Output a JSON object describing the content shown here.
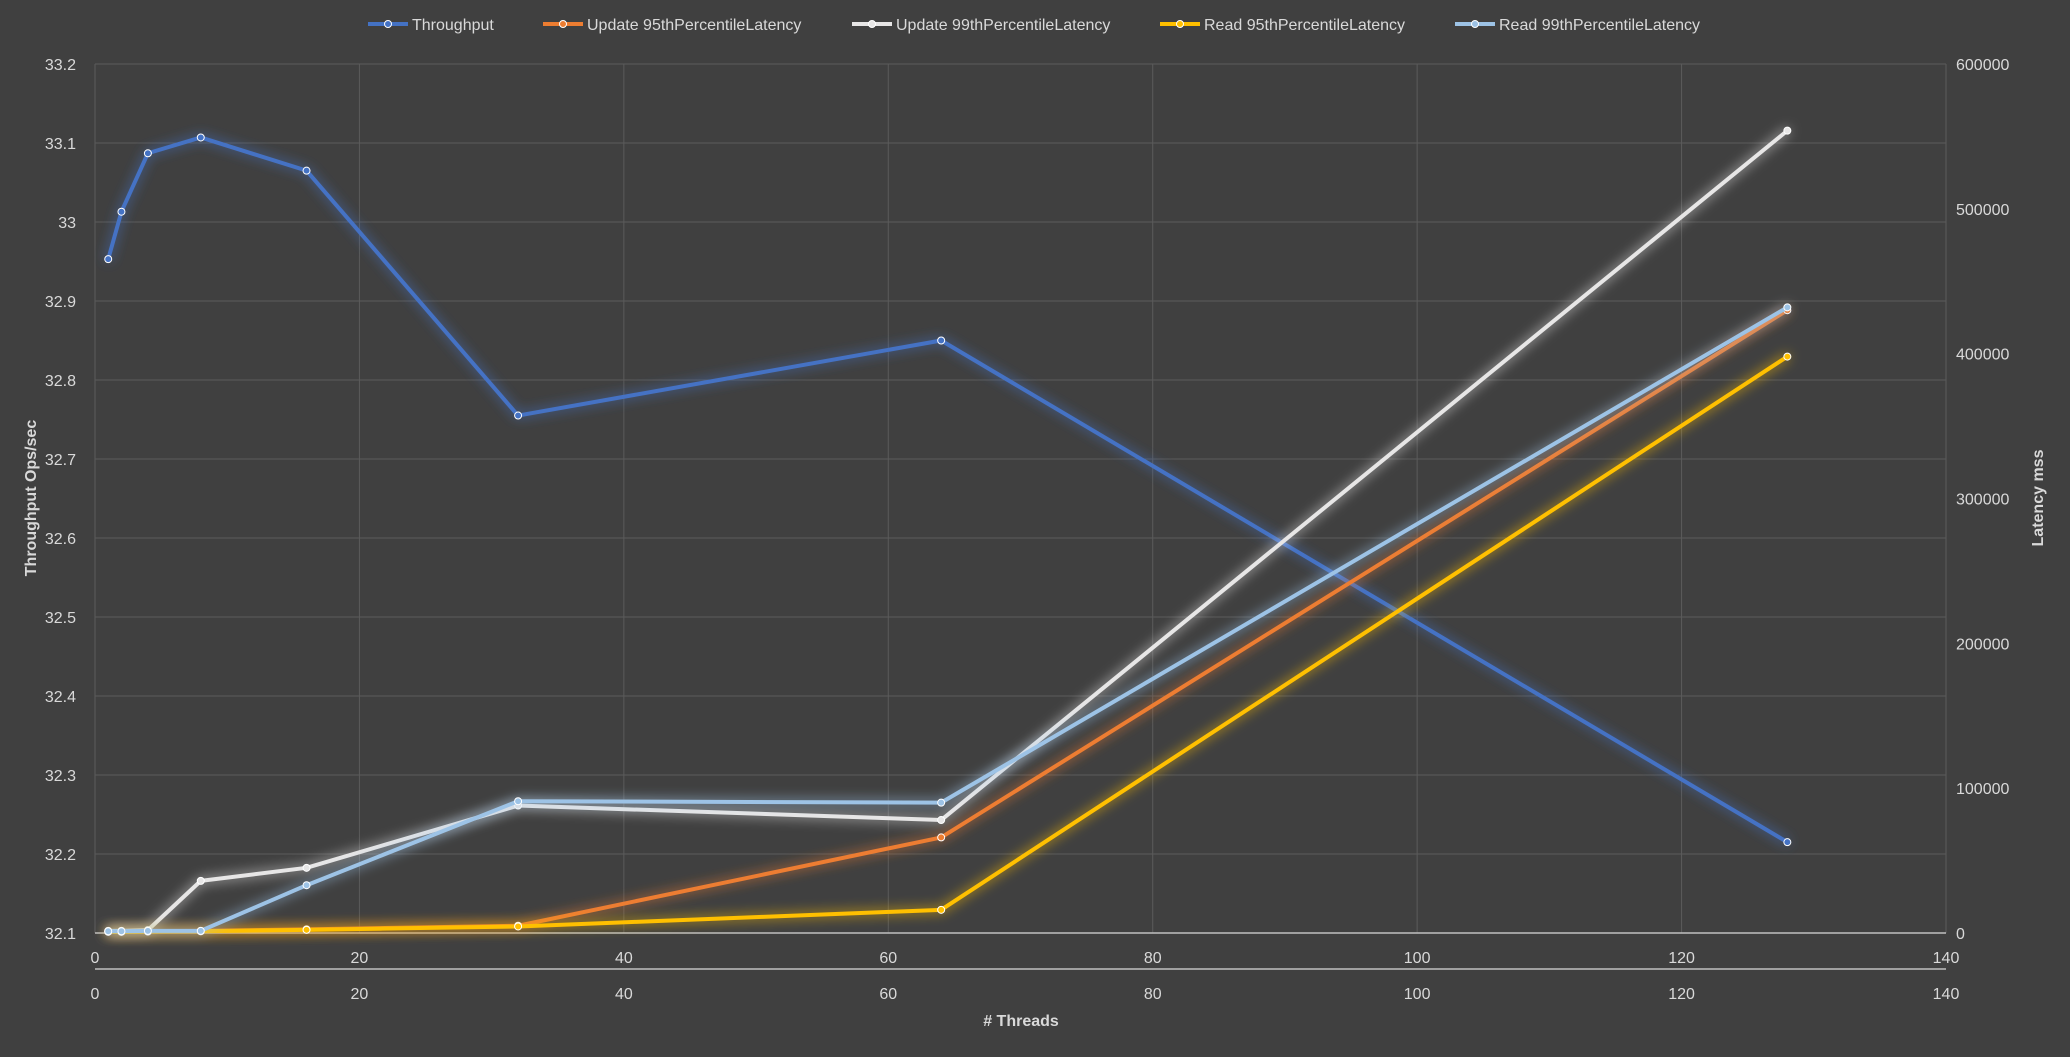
{
  "colors": {
    "background": "#404040",
    "grid": "#5b5b5b",
    "axis_text": "#d9d9d9"
  },
  "chart_data": {
    "type": "line",
    "xlabel": "# Threads",
    "ylabel_left": "Throughput Ops/sec",
    "ylabel_right": "Latency  mss",
    "xlim": [
      0,
      140
    ],
    "x_ticks": [
      "0",
      "20",
      "40",
      "60",
      "80",
      "100",
      "120",
      "140"
    ],
    "ylim_left": [
      32.1,
      33.2
    ],
    "y_ticks_left": [
      "32.1",
      "32.2",
      "32.3",
      "32.4",
      "32.5",
      "32.6",
      "32.7",
      "32.8",
      "32.9",
      "33",
      "33.1",
      "33.2"
    ],
    "ylim_right": [
      0,
      600000
    ],
    "y_ticks_right": [
      "0",
      "100000",
      "200000",
      "300000",
      "400000",
      "500000",
      "600000"
    ],
    "grid": true,
    "legend_position": "top",
    "series": [
      {
        "name": "Throughput",
        "axis": "left",
        "color": "#4472C4",
        "points": [
          [
            1,
            32.953
          ],
          [
            2,
            33.013
          ],
          [
            4,
            33.087
          ],
          [
            8,
            33.107
          ],
          [
            16,
            33.065
          ],
          [
            32,
            32.755
          ],
          [
            64,
            32.85
          ],
          [
            128,
            32.215
          ]
        ]
      },
      {
        "name": "Update 95thPercentileLatency",
        "axis": "right",
        "color": "#ED7D31",
        "points": [
          [
            1,
            1000
          ],
          [
            2,
            1000
          ],
          [
            4,
            1200
          ],
          [
            8,
            1500
          ],
          [
            16,
            2500
          ],
          [
            32,
            5000
          ],
          [
            64,
            66000
          ],
          [
            128,
            430000
          ]
        ]
      },
      {
        "name": "Update 99thPercentileLatency",
        "axis": "right",
        "color": "#E7E6E6",
        "points": [
          [
            1,
            1500
          ],
          [
            2,
            1500
          ],
          [
            4,
            2000
          ],
          [
            8,
            36000
          ],
          [
            16,
            45000
          ],
          [
            32,
            88000
          ],
          [
            64,
            78000
          ],
          [
            128,
            554000
          ]
        ]
      },
      {
        "name": "Read 95thPercentileLatency",
        "axis": "right",
        "color": "#FFC000",
        "points": [
          [
            1,
            800
          ],
          [
            2,
            800
          ],
          [
            4,
            1000
          ],
          [
            8,
            1200
          ],
          [
            16,
            2200
          ],
          [
            32,
            4500
          ],
          [
            64,
            16000
          ],
          [
            128,
            398000
          ]
        ]
      },
      {
        "name": "Read 99thPercentileLatency",
        "axis": "right",
        "color": "#9DC3E6",
        "points": [
          [
            1,
            1200
          ],
          [
            2,
            1200
          ],
          [
            4,
            1500
          ],
          [
            8,
            1500
          ],
          [
            16,
            33000
          ],
          [
            32,
            91000
          ],
          [
            64,
            90000
          ],
          [
            128,
            432000
          ]
        ]
      }
    ]
  }
}
